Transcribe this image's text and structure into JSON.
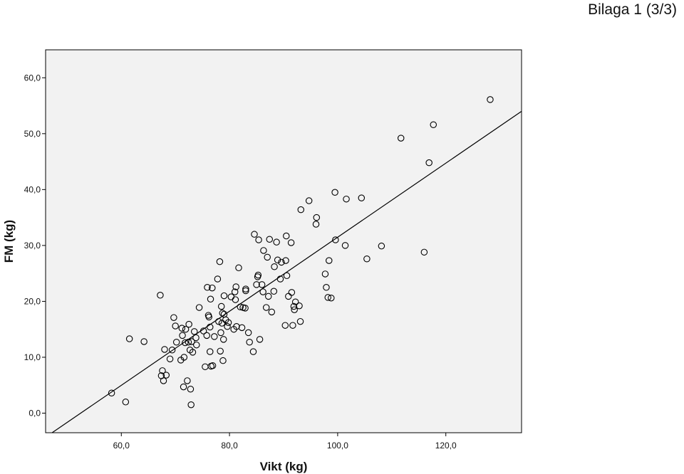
{
  "page": {
    "header_label": "Bilaga 1 (3/3)"
  },
  "chart_data": {
    "type": "scatter",
    "title": "",
    "xlabel": "Vikt (kg)",
    "ylabel": "FM (kg)",
    "xlim": [
      46.0,
      134.0
    ],
    "ylim": [
      -3.5,
      65.0
    ],
    "xticks": [
      60,
      80,
      100,
      120
    ],
    "yticks": [
      0,
      10,
      20,
      30,
      40,
      50,
      60
    ],
    "xtick_labels": [
      "60,0",
      "80,0",
      "100,0",
      "120,0"
    ],
    "ytick_labels": [
      "0,0",
      "10,0",
      "20,0",
      "30,0",
      "40,0",
      "50,0",
      "60,0"
    ],
    "grid": false,
    "colors": {
      "plot_background": "#f2f2f2",
      "marker": "#000000",
      "line": "#000000"
    },
    "fit_line": {
      "x": [
        47.2,
        134.0
      ],
      "y": [
        -3.5,
        54.0
      ]
    },
    "points": [
      [
        58.2,
        3.6
      ],
      [
        60.8,
        2.0
      ],
      [
        61.5,
        13.3
      ],
      [
        64.2,
        12.8
      ],
      [
        67.2,
        21.1
      ],
      [
        67.4,
        6.7
      ],
      [
        67.6,
        7.6
      ],
      [
        67.8,
        5.8
      ],
      [
        68.0,
        11.4
      ],
      [
        68.3,
        6.8
      ],
      [
        69.0,
        9.7
      ],
      [
        69.4,
        11.3
      ],
      [
        69.7,
        17.1
      ],
      [
        70.0,
        15.6
      ],
      [
        70.2,
        12.7
      ],
      [
        71.0,
        9.5
      ],
      [
        71.2,
        15.2
      ],
      [
        71.3,
        13.9
      ],
      [
        71.5,
        4.7
      ],
      [
        71.6,
        10.0
      ],
      [
        71.8,
        12.6
      ],
      [
        71.9,
        15.0
      ],
      [
        72.2,
        5.8
      ],
      [
        72.4,
        12.7
      ],
      [
        72.5,
        15.9
      ],
      [
        72.7,
        11.3
      ],
      [
        72.8,
        4.3
      ],
      [
        72.9,
        1.5
      ],
      [
        73.0,
        12.8
      ],
      [
        73.2,
        10.9
      ],
      [
        73.5,
        14.6
      ],
      [
        73.8,
        13.5
      ],
      [
        73.9,
        12.2
      ],
      [
        74.4,
        18.9
      ],
      [
        75.2,
        14.7
      ],
      [
        75.5,
        8.3
      ],
      [
        75.8,
        13.9
      ],
      [
        75.9,
        22.5
      ],
      [
        76.1,
        17.5
      ],
      [
        76.2,
        17.2
      ],
      [
        76.4,
        11.0
      ],
      [
        76.4,
        15.4
      ],
      [
        76.5,
        20.4
      ],
      [
        76.6,
        8.4
      ],
      [
        76.8,
        22.4
      ],
      [
        76.9,
        8.5
      ],
      [
        77.2,
        13.7
      ],
      [
        77.8,
        24.0
      ],
      [
        78.0,
        16.4
      ],
      [
        78.2,
        27.1
      ],
      [
        78.3,
        11.1
      ],
      [
        78.4,
        14.4
      ],
      [
        78.5,
        19.1
      ],
      [
        78.6,
        16.1
      ],
      [
        78.7,
        17.9
      ],
      [
        78.8,
        9.4
      ],
      [
        78.9,
        13.2
      ],
      [
        79.0,
        17.7
      ],
      [
        79.0,
        21.0
      ],
      [
        79.3,
        16.7
      ],
      [
        79.6,
        15.5
      ],
      [
        79.8,
        16.2
      ],
      [
        80.3,
        20.8
      ],
      [
        80.8,
        15.0
      ],
      [
        81.0,
        21.7
      ],
      [
        81.1,
        20.3
      ],
      [
        81.2,
        22.6
      ],
      [
        81.3,
        15.5
      ],
      [
        81.7,
        26.0
      ],
      [
        82.0,
        19.0
      ],
      [
        82.3,
        15.3
      ],
      [
        82.5,
        18.9
      ],
      [
        82.9,
        18.8
      ],
      [
        83.0,
        22.2
      ],
      [
        83.0,
        21.9
      ],
      [
        83.5,
        14.4
      ],
      [
        83.7,
        12.7
      ],
      [
        84.4,
        11.0
      ],
      [
        84.6,
        32.0
      ],
      [
        85.0,
        23.0
      ],
      [
        85.2,
        24.4
      ],
      [
        85.3,
        24.7
      ],
      [
        85.4,
        31.0
      ],
      [
        85.6,
        13.2
      ],
      [
        86.0,
        23.0
      ],
      [
        86.2,
        21.7
      ],
      [
        86.3,
        29.1
      ],
      [
        86.8,
        18.9
      ],
      [
        87.0,
        27.9
      ],
      [
        87.2,
        20.9
      ],
      [
        87.4,
        31.1
      ],
      [
        87.8,
        18.1
      ],
      [
        88.2,
        21.8
      ],
      [
        88.3,
        26.2
      ],
      [
        88.7,
        30.6
      ],
      [
        88.9,
        27.4
      ],
      [
        89.4,
        24.0
      ],
      [
        89.6,
        27.0
      ],
      [
        90.3,
        15.7
      ],
      [
        90.4,
        27.3
      ],
      [
        90.5,
        31.7
      ],
      [
        90.6,
        24.6
      ],
      [
        90.9,
        20.9
      ],
      [
        91.4,
        30.5
      ],
      [
        91.5,
        21.6
      ],
      [
        91.7,
        15.7
      ],
      [
        91.9,
        19.1
      ],
      [
        92.0,
        18.5
      ],
      [
        92.2,
        19.9
      ],
      [
        92.9,
        19.2
      ],
      [
        93.1,
        16.4
      ],
      [
        93.2,
        36.4
      ],
      [
        94.7,
        38.0
      ],
      [
        96.0,
        33.8
      ],
      [
        96.1,
        35.0
      ],
      [
        97.7,
        24.9
      ],
      [
        97.9,
        22.5
      ],
      [
        98.2,
        20.7
      ],
      [
        98.4,
        27.3
      ],
      [
        98.8,
        20.6
      ],
      [
        99.5,
        39.5
      ],
      [
        99.6,
        31.0
      ],
      [
        101.4,
        30.0
      ],
      [
        101.6,
        38.3
      ],
      [
        104.4,
        38.5
      ],
      [
        105.4,
        27.6
      ],
      [
        108.1,
        29.9
      ],
      [
        111.7,
        49.2
      ],
      [
        116.0,
        28.8
      ],
      [
        116.9,
        44.8
      ],
      [
        117.7,
        51.6
      ],
      [
        128.2,
        56.1
      ]
    ]
  }
}
